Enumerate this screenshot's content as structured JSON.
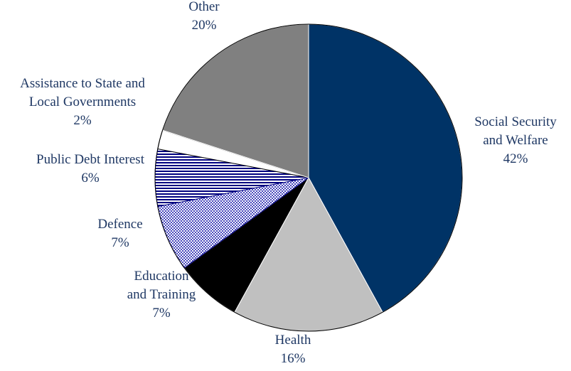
{
  "chart_data": {
    "type": "pie",
    "slices": [
      {
        "name": "Social Security and Welfare",
        "label_lines": [
          "Social Security",
          "and Welfare"
        ],
        "value": 42,
        "value_label": "42%",
        "color": "#003366",
        "pattern": "solid"
      },
      {
        "name": "Health",
        "label_lines": [
          "Health"
        ],
        "value": 16,
        "value_label": "16%",
        "color": "#c0c0c0",
        "pattern": "solid"
      },
      {
        "name": "Education and Training",
        "label_lines": [
          "Education",
          "and Training"
        ],
        "value": 7,
        "value_label": "7%",
        "color": "#000000",
        "pattern": "solid"
      },
      {
        "name": "Defence",
        "label_lines": [
          "Defence"
        ],
        "value": 7,
        "value_label": "7%",
        "color": "#4b4bc8",
        "pattern": "dots"
      },
      {
        "name": "Public Debt Interest",
        "label_lines": [
          "Public Debt Interest"
        ],
        "value": 6,
        "value_label": "6%",
        "color": "#000080",
        "pattern": "hlines"
      },
      {
        "name": "Assistance to State and Local Governments",
        "label_lines": [
          "Assistance to State and",
          "Local Governments"
        ],
        "value": 2,
        "value_label": "2%",
        "color": "#ffffff",
        "pattern": "solid"
      },
      {
        "name": "Other",
        "label_lines": [
          "Other"
        ],
        "value": 20,
        "value_label": "20%",
        "color": "#808080",
        "pattern": "solid"
      }
    ],
    "start_angle_deg": 0,
    "direction": "clockwise",
    "legend": "none",
    "title": ""
  }
}
